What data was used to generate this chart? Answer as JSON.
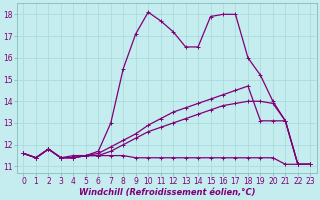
{
  "xlabel": "Windchill (Refroidissement éolien,°C)",
  "background_color": "#c5ecee",
  "grid_color": "#aadddd",
  "line_color": "#800078",
  "xlim": [
    -0.5,
    23.5
  ],
  "ylim": [
    10.7,
    18.5
  ],
  "yticks": [
    11,
    12,
    13,
    14,
    15,
    16,
    17,
    18
  ],
  "xticks": [
    0,
    1,
    2,
    3,
    4,
    5,
    6,
    7,
    8,
    9,
    10,
    11,
    12,
    13,
    14,
    15,
    16,
    17,
    18,
    19,
    20,
    21,
    22,
    23
  ],
  "line1_x": [
    0,
    1,
    2,
    3,
    4,
    5,
    6,
    7,
    8,
    9,
    10,
    11,
    12,
    13,
    14,
    15,
    16,
    17,
    18,
    19,
    20,
    21,
    22,
    23
  ],
  "line1_y": [
    11.6,
    11.4,
    11.8,
    11.4,
    11.4,
    11.5,
    11.5,
    11.7,
    12.0,
    12.3,
    12.6,
    12.8,
    13.0,
    13.2,
    13.4,
    13.6,
    13.8,
    13.9,
    14.0,
    14.0,
    13.9,
    13.1,
    11.1,
    11.1
  ],
  "line2_x": [
    0,
    1,
    2,
    3,
    4,
    5,
    6,
    7,
    8,
    9,
    10,
    11,
    12,
    13,
    14,
    15,
    16,
    17,
    18,
    19,
    20,
    21,
    22,
    23
  ],
  "line2_y": [
    11.6,
    11.4,
    11.8,
    11.4,
    11.4,
    11.5,
    11.6,
    11.9,
    12.2,
    12.5,
    12.9,
    13.2,
    13.5,
    13.7,
    13.9,
    14.1,
    14.3,
    14.5,
    14.7,
    13.1,
    13.1,
    13.1,
    11.1,
    11.1
  ],
  "line3_x": [
    0,
    1,
    2,
    3,
    4,
    5,
    6,
    7,
    8,
    9,
    10,
    11,
    12,
    13,
    14,
    15,
    16,
    17,
    18,
    19,
    20,
    21,
    22,
    23
  ],
  "line3_y": [
    11.6,
    11.4,
    11.8,
    11.4,
    11.4,
    11.5,
    11.5,
    11.5,
    11.5,
    11.4,
    11.4,
    11.4,
    11.4,
    11.4,
    11.4,
    11.4,
    11.4,
    11.4,
    11.4,
    11.4,
    11.4,
    11.1,
    11.1,
    11.1
  ],
  "line4_x": [
    0,
    1,
    2,
    3,
    4,
    5,
    6,
    7,
    8,
    9,
    10,
    11,
    12,
    13,
    14,
    15,
    16,
    17,
    18,
    19,
    20,
    21,
    22,
    23
  ],
  "line4_y": [
    11.6,
    11.4,
    11.8,
    11.4,
    11.5,
    11.5,
    11.7,
    13.0,
    15.5,
    17.1,
    18.1,
    17.7,
    17.2,
    16.5,
    16.5,
    17.9,
    18.0,
    18.0,
    16.0,
    15.2,
    14.0,
    13.1,
    11.1,
    11.1
  ],
  "marker": "+",
  "markersize": 3,
  "linewidth": 0.9,
  "tick_fontsize": 5.5,
  "xlabel_fontsize": 6.0
}
